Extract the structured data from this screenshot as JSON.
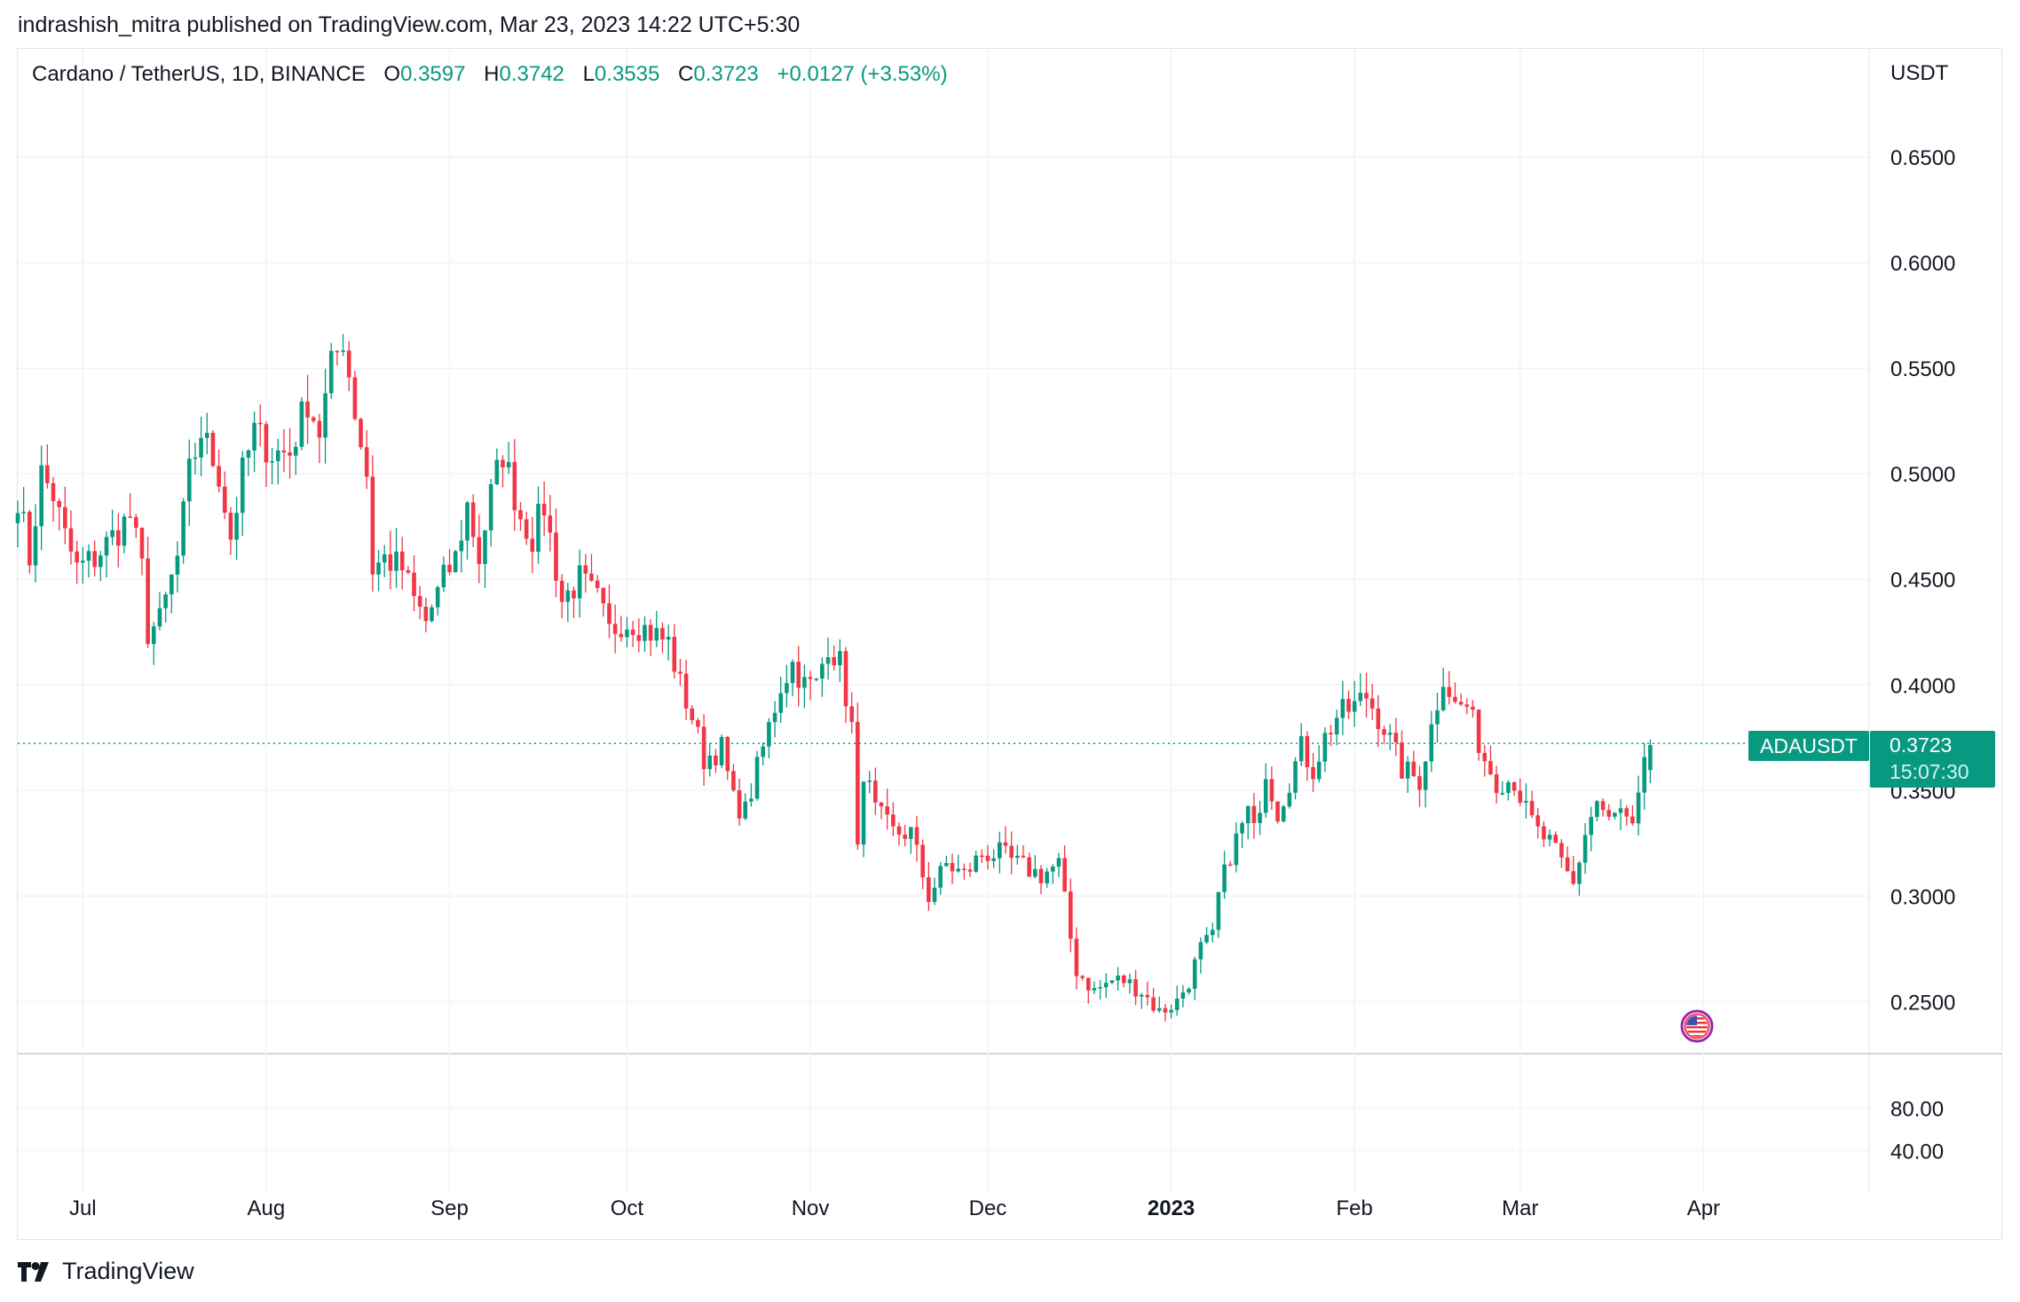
{
  "publisher": "indrashish_mitra published on TradingView.com, Mar 23, 2023 14:22 UTC+5:30",
  "legend": {
    "symbol": "Cardano / TetherUS, 1D, BINANCE",
    "open_label": "O",
    "open": "0.3597",
    "high_label": "H",
    "high": "0.3742",
    "low_label": "L",
    "low": "0.3535",
    "close_label": "C",
    "close": "0.3723",
    "change": "+0.0127 (+3.53%)"
  },
  "ticker": "ADAUSDT",
  "countdown": "15:07:30",
  "footer_brand": "TradingView",
  "flag_icon": "us-flag-icon",
  "colors": {
    "up": "#089981",
    "down": "#f23645",
    "grid": "#f0f3fa",
    "text": "#131722"
  },
  "chart_data": {
    "type": "candlestick",
    "currency_label": "USDT",
    "y_ticks": [
      "0.6500",
      "0.6000",
      "0.5500",
      "0.5000",
      "0.4500",
      "0.4000",
      "0.3500",
      "0.3000",
      "0.2500"
    ],
    "ylim": [
      0.2262,
      0.7013
    ],
    "indicator_ticks": [
      "80.00",
      "40.00"
    ],
    "indicator_ylim": [
      0,
      130
    ],
    "x_ticks": [
      {
        "label": "Jul",
        "date": "2022-07-01",
        "bold": false
      },
      {
        "label": "Aug",
        "date": "2022-08-01",
        "bold": false
      },
      {
        "label": "Sep",
        "date": "2022-09-01",
        "bold": false
      },
      {
        "label": "Oct",
        "date": "2022-10-01",
        "bold": false
      },
      {
        "label": "Nov",
        "date": "2022-11-01",
        "bold": false
      },
      {
        "label": "Dec",
        "date": "2022-12-01",
        "bold": false
      },
      {
        "label": "2023",
        "date": "2023-01-01",
        "bold": true
      },
      {
        "label": "Feb",
        "date": "2023-02-01",
        "bold": false
      },
      {
        "label": "Mar",
        "date": "2023-03-01",
        "bold": false
      },
      {
        "label": "Apr",
        "date": "2023-04-01",
        "bold": false
      }
    ],
    "xlim": [
      "2022-06-20",
      "2023-04-29"
    ],
    "current_price": 0.3723,
    "start_date": "2022-06-20",
    "anchors": [
      [
        "2022-06-20",
        0.49
      ],
      [
        "2022-06-22",
        0.46
      ],
      [
        "2022-06-24",
        0.5
      ],
      [
        "2022-06-26",
        0.49
      ],
      [
        "2022-06-28",
        0.47
      ],
      [
        "2022-06-30",
        0.455
      ],
      [
        "2022-07-03",
        0.46
      ],
      [
        "2022-07-06",
        0.47
      ],
      [
        "2022-07-09",
        0.48
      ],
      [
        "2022-07-11",
        0.455
      ],
      [
        "2022-07-12",
        0.425
      ],
      [
        "2022-07-14",
        0.43
      ],
      [
        "2022-07-17",
        0.46
      ],
      [
        "2022-07-19",
        0.5
      ],
      [
        "2022-07-21",
        0.52
      ],
      [
        "2022-07-24",
        0.5
      ],
      [
        "2022-07-26",
        0.47
      ],
      [
        "2022-07-28",
        0.5
      ],
      [
        "2022-07-30",
        0.52
      ],
      [
        "2022-08-02",
        0.51
      ],
      [
        "2022-08-05",
        0.51
      ],
      [
        "2022-08-08",
        0.535
      ],
      [
        "2022-08-10",
        0.52
      ],
      [
        "2022-08-12",
        0.55
      ],
      [
        "2022-08-14",
        0.565
      ],
      [
        "2022-08-16",
        0.53
      ],
      [
        "2022-08-18",
        0.5
      ],
      [
        "2022-08-19",
        0.455
      ],
      [
        "2022-08-21",
        0.46
      ],
      [
        "2022-08-24",
        0.455
      ],
      [
        "2022-08-26",
        0.44
      ],
      [
        "2022-08-28",
        0.43
      ],
      [
        "2022-08-31",
        0.45
      ],
      [
        "2022-09-02",
        0.46
      ],
      [
        "2022-09-04",
        0.485
      ],
      [
        "2022-09-06",
        0.46
      ],
      [
        "2022-09-08",
        0.49
      ],
      [
        "2022-09-10",
        0.51
      ],
      [
        "2022-09-13",
        0.48
      ],
      [
        "2022-09-15",
        0.47
      ],
      [
        "2022-09-17",
        0.485
      ],
      [
        "2022-09-20",
        0.44
      ],
      [
        "2022-09-23",
        0.45
      ],
      [
        "2022-09-26",
        0.44
      ],
      [
        "2022-09-28",
        0.425
      ],
      [
        "2022-09-30",
        0.43
      ],
      [
        "2022-10-02",
        0.43
      ],
      [
        "2022-10-05",
        0.425
      ],
      [
        "2022-10-08",
        0.42
      ],
      [
        "2022-10-10",
        0.4
      ],
      [
        "2022-10-12",
        0.385
      ],
      [
        "2022-10-14",
        0.365
      ],
      [
        "2022-10-17",
        0.37
      ],
      [
        "2022-10-19",
        0.345
      ],
      [
        "2022-10-21",
        0.34
      ],
      [
        "2022-10-23",
        0.36
      ],
      [
        "2022-10-25",
        0.38
      ],
      [
        "2022-10-27",
        0.4
      ],
      [
        "2022-10-29",
        0.41
      ],
      [
        "2022-10-31",
        0.4
      ],
      [
        "2022-11-02",
        0.4
      ],
      [
        "2022-11-04",
        0.42
      ],
      [
        "2022-11-06",
        0.41
      ],
      [
        "2022-11-08",
        0.38
      ],
      [
        "2022-11-09",
        0.32
      ],
      [
        "2022-11-10",
        0.36
      ],
      [
        "2022-11-12",
        0.34
      ],
      [
        "2022-11-15",
        0.33
      ],
      [
        "2022-11-18",
        0.33
      ],
      [
        "2022-11-21",
        0.3
      ],
      [
        "2022-11-24",
        0.315
      ],
      [
        "2022-11-27",
        0.31
      ],
      [
        "2022-11-30",
        0.32
      ],
      [
        "2022-12-03",
        0.32
      ],
      [
        "2022-12-06",
        0.315
      ],
      [
        "2022-12-10",
        0.31
      ],
      [
        "2022-12-13",
        0.315
      ],
      [
        "2022-12-15",
        0.28
      ],
      [
        "2022-12-16",
        0.265
      ],
      [
        "2022-12-19",
        0.255
      ],
      [
        "2022-12-22",
        0.26
      ],
      [
        "2022-12-24",
        0.26
      ],
      [
        "2022-12-27",
        0.255
      ],
      [
        "2022-12-30",
        0.245
      ],
      [
        "2023-01-02",
        0.25
      ],
      [
        "2023-01-04",
        0.26
      ],
      [
        "2023-01-06",
        0.275
      ],
      [
        "2023-01-08",
        0.28
      ],
      [
        "2023-01-09",
        0.3
      ],
      [
        "2023-01-11",
        0.32
      ],
      [
        "2023-01-14",
        0.34
      ],
      [
        "2023-01-15",
        0.33
      ],
      [
        "2023-01-17",
        0.36
      ],
      [
        "2023-01-19",
        0.34
      ],
      [
        "2023-01-21",
        0.355
      ],
      [
        "2023-01-23",
        0.37
      ],
      [
        "2023-01-25",
        0.36
      ],
      [
        "2023-01-27",
        0.375
      ],
      [
        "2023-01-29",
        0.385
      ],
      [
        "2023-02-01",
        0.39
      ],
      [
        "2023-02-03",
        0.395
      ],
      [
        "2023-02-06",
        0.38
      ],
      [
        "2023-02-09",
        0.36
      ],
      [
        "2023-02-12",
        0.355
      ],
      [
        "2023-02-14",
        0.38
      ],
      [
        "2023-02-16",
        0.405
      ],
      [
        "2023-02-18",
        0.39
      ],
      [
        "2023-02-20",
        0.39
      ],
      [
        "2023-02-23",
        0.365
      ],
      [
        "2023-02-25",
        0.355
      ],
      [
        "2023-02-28",
        0.355
      ],
      [
        "2023-03-02",
        0.34
      ],
      [
        "2023-03-04",
        0.33
      ],
      [
        "2023-03-06",
        0.325
      ],
      [
        "2023-03-08",
        0.315
      ],
      [
        "2023-03-10",
        0.305
      ],
      [
        "2023-03-12",
        0.33
      ],
      [
        "2023-03-14",
        0.345
      ],
      [
        "2023-03-16",
        0.335
      ],
      [
        "2023-03-18",
        0.34
      ],
      [
        "2023-03-20",
        0.33
      ],
      [
        "2023-03-22",
        0.3597
      ],
      [
        "2023-03-23",
        0.3723
      ]
    ],
    "last_candle": {
      "date": "2023-03-23",
      "open": 0.3597,
      "high": 0.3742,
      "low": 0.3535,
      "close": 0.3723
    }
  }
}
